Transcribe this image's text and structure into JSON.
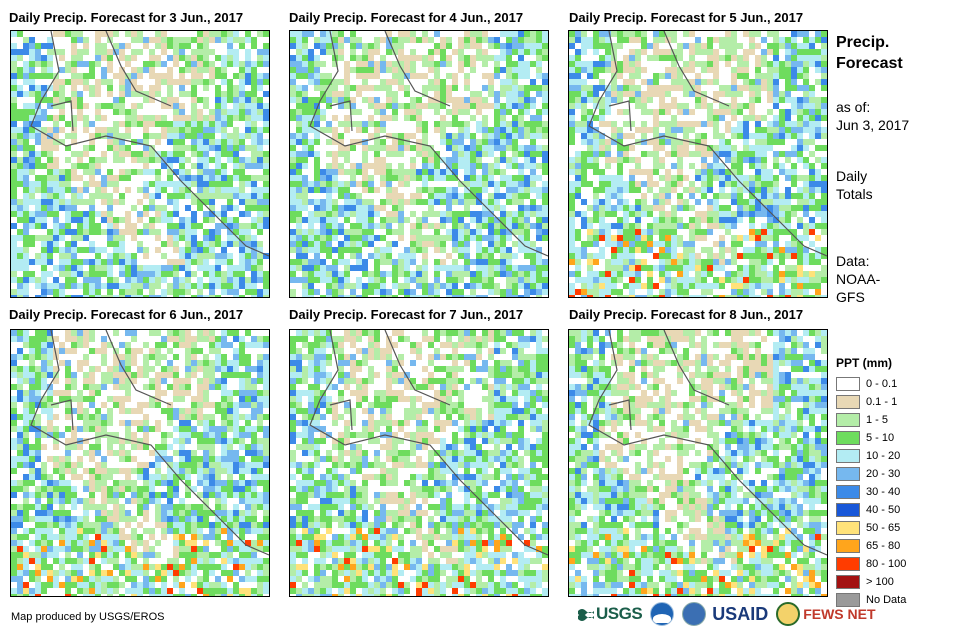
{
  "panels": [
    {
      "title": "Daily Precip. Forecast for 3 Jun., 2017"
    },
    {
      "title": "Daily Precip. Forecast for 4 Jun., 2017"
    },
    {
      "title": "Daily Precip. Forecast for 5 Jun., 2017"
    },
    {
      "title": "Daily Precip. Forecast for 6 Jun., 2017"
    },
    {
      "title": "Daily Precip. Forecast for 7 Jun., 2017"
    },
    {
      "title": "Daily Precip. Forecast for 8 Jun., 2017"
    }
  ],
  "side": {
    "title_line1": "Precip.",
    "title_line2": "Forecast",
    "asof_label": "as of:",
    "asof_date": "Jun 3, 2017",
    "totals_line1": "Daily",
    "totals_line2": "Totals",
    "data_label": "Data:",
    "data_source1": "NOAA-",
    "data_source2": "GFS"
  },
  "legend": {
    "title": "PPT (mm)",
    "items": [
      {
        "label": "0 - 0.1",
        "color": "#ffffff"
      },
      {
        "label": "0.1 - 1",
        "color": "#e8d8b5"
      },
      {
        "label": "1 - 5",
        "color": "#b4eda8"
      },
      {
        "label": "5 - 10",
        "color": "#6edc5e"
      },
      {
        "label": "10 - 20",
        "color": "#b3ecf3"
      },
      {
        "label": "20 - 30",
        "color": "#76b8ef"
      },
      {
        "label": "30 - 40",
        "color": "#3c8ae8"
      },
      {
        "label": "40 - 50",
        "color": "#1857d8"
      },
      {
        "label": "50 - 65",
        "color": "#ffe27a"
      },
      {
        "label": "65 - 80",
        "color": "#ffa51c"
      },
      {
        "label": "80 - 100",
        "color": "#ff3c00"
      },
      {
        "label": "> 100",
        "color": "#a31212"
      },
      {
        "label": "No Data",
        "color": "#9a9a9a"
      }
    ]
  },
  "credit": "Map produced by USGS/EROS",
  "logos": {
    "usgs": "USGS",
    "usaid": "USAID",
    "fews": "FEWS NET"
  }
}
